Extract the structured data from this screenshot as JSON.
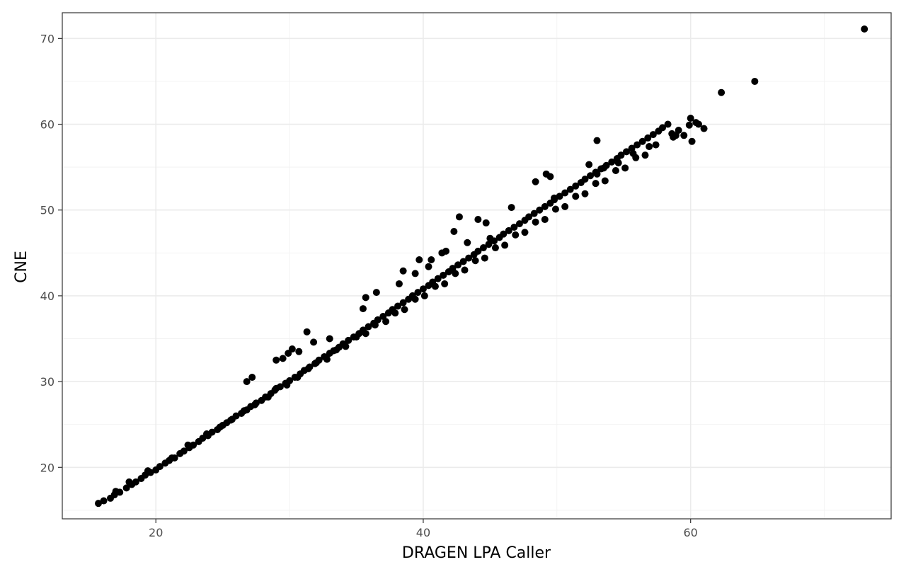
{
  "chart_data": {
    "type": "scatter",
    "title": "",
    "xlabel": "DRAGEN LPA Caller",
    "ylabel": "CNE",
    "xlim": [
      13,
      75
    ],
    "ylim": [
      14,
      73
    ],
    "x_ticks": [
      20,
      40,
      60
    ],
    "y_ticks": [
      20,
      30,
      40,
      50,
      60,
      70
    ],
    "x_minor_ticks": [
      30,
      50,
      70
    ],
    "y_minor_ticks": [
      15,
      25,
      35,
      45,
      55,
      65
    ],
    "grid": true,
    "legend": "none",
    "point_color": "#000000",
    "series": [
      {
        "points": [
          [
            15.7,
            15.8
          ],
          [
            16.1,
            16.1
          ],
          [
            16.6,
            16.4
          ],
          [
            16.9,
            16.8
          ],
          [
            17.3,
            17.1
          ],
          [
            17.8,
            17.6
          ],
          [
            18.2,
            18.0
          ],
          [
            18.5,
            18.3
          ],
          [
            18.9,
            18.7
          ],
          [
            19.2,
            19.1
          ],
          [
            19.6,
            19.4
          ],
          [
            20.0,
            19.7
          ],
          [
            20.3,
            20.1
          ],
          [
            20.7,
            20.5
          ],
          [
            21.0,
            20.8
          ],
          [
            21.4,
            21.1
          ],
          [
            21.8,
            21.6
          ],
          [
            22.1,
            21.9
          ],
          [
            22.5,
            22.3
          ],
          [
            22.8,
            22.6
          ],
          [
            23.2,
            23.0
          ],
          [
            23.5,
            23.4
          ],
          [
            23.9,
            23.7
          ],
          [
            24.2,
            24.1
          ],
          [
            24.6,
            24.4
          ],
          [
            25.0,
            24.9
          ],
          [
            25.3,
            25.2
          ],
          [
            25.7,
            25.6
          ],
          [
            26.0,
            26.0
          ],
          [
            26.4,
            26.3
          ],
          [
            26.8,
            26.7
          ],
          [
            27.1,
            27.1
          ],
          [
            27.5,
            27.5
          ],
          [
            27.9,
            27.8
          ],
          [
            28.2,
            28.2
          ],
          [
            28.6,
            28.6
          ],
          [
            28.9,
            29.0
          ],
          [
            29.3,
            29.4
          ],
          [
            29.7,
            29.8
          ],
          [
            30.0,
            30.1
          ],
          [
            30.4,
            30.5
          ],
          [
            30.8,
            30.9
          ],
          [
            31.1,
            31.3
          ],
          [
            31.5,
            31.7
          ],
          [
            31.9,
            32.1
          ],
          [
            32.2,
            32.5
          ],
          [
            32.6,
            32.9
          ],
          [
            33.0,
            33.3
          ],
          [
            33.3,
            33.6
          ],
          [
            33.7,
            34.0
          ],
          [
            34.0,
            34.4
          ],
          [
            34.4,
            34.8
          ],
          [
            34.8,
            35.2
          ],
          [
            35.2,
            35.6
          ],
          [
            35.5,
            36.0
          ],
          [
            35.9,
            36.4
          ],
          [
            36.3,
            36.8
          ],
          [
            36.6,
            37.2
          ],
          [
            37.0,
            37.6
          ],
          [
            37.4,
            38.0
          ],
          [
            37.7,
            38.4
          ],
          [
            38.1,
            38.8
          ],
          [
            38.5,
            39.2
          ],
          [
            38.9,
            39.6
          ],
          [
            39.2,
            40.0
          ],
          [
            39.6,
            40.4
          ],
          [
            40.0,
            40.8
          ],
          [
            40.4,
            41.2
          ],
          [
            40.7,
            41.6
          ],
          [
            41.1,
            42.0
          ],
          [
            41.5,
            42.4
          ],
          [
            41.9,
            42.8
          ],
          [
            42.2,
            43.2
          ],
          [
            42.6,
            43.6
          ],
          [
            43.0,
            44.0
          ],
          [
            43.4,
            44.4
          ],
          [
            43.8,
            44.8
          ],
          [
            44.1,
            45.2
          ],
          [
            44.5,
            45.6
          ],
          [
            44.9,
            46.0
          ],
          [
            45.3,
            46.4
          ],
          [
            45.7,
            46.8
          ],
          [
            46.0,
            47.2
          ],
          [
            46.4,
            47.6
          ],
          [
            46.8,
            48.0
          ],
          [
            47.2,
            48.4
          ],
          [
            47.6,
            48.8
          ],
          [
            47.9,
            49.2
          ],
          [
            48.3,
            49.6
          ],
          [
            48.7,
            50.0
          ],
          [
            49.1,
            50.4
          ],
          [
            49.5,
            50.8
          ],
          [
            49.8,
            51.2
          ],
          [
            50.2,
            51.6
          ],
          [
            50.6,
            52.0
          ],
          [
            51.0,
            52.4
          ],
          [
            51.4,
            52.8
          ],
          [
            51.8,
            53.2
          ],
          [
            52.1,
            53.6
          ],
          [
            52.5,
            54.0
          ],
          [
            52.9,
            54.4
          ],
          [
            53.3,
            54.8
          ],
          [
            53.7,
            55.2
          ],
          [
            54.1,
            55.6
          ],
          [
            54.5,
            56.0
          ],
          [
            54.8,
            56.4
          ],
          [
            55.2,
            56.8
          ],
          [
            55.6,
            57.2
          ],
          [
            56.0,
            57.6
          ],
          [
            56.4,
            58.0
          ],
          [
            56.8,
            58.4
          ],
          [
            57.2,
            58.8
          ],
          [
            57.6,
            59.2
          ],
          [
            57.9,
            59.6
          ],
          [
            58.3,
            60.0
          ],
          [
            58.7,
            58.5
          ],
          [
            59.1,
            59.3
          ],
          [
            59.5,
            58.7
          ],
          [
            59.9,
            59.9
          ],
          [
            60.4,
            60.2
          ],
          [
            17.0,
            17.2
          ],
          [
            18.0,
            18.3
          ],
          [
            19.4,
            19.6
          ],
          [
            21.2,
            21.1
          ],
          [
            22.4,
            22.6
          ],
          [
            23.8,
            23.9
          ],
          [
            24.8,
            24.7
          ],
          [
            25.6,
            25.5
          ],
          [
            26.6,
            26.6
          ],
          [
            27.4,
            27.3
          ],
          [
            28.4,
            28.2
          ],
          [
            29.0,
            29.2
          ],
          [
            29.8,
            29.6
          ],
          [
            30.6,
            30.5
          ],
          [
            31.4,
            31.5
          ],
          [
            32.0,
            32.2
          ],
          [
            32.8,
            32.6
          ],
          [
            33.5,
            33.7
          ],
          [
            34.2,
            34.1
          ],
          [
            35.0,
            35.2
          ],
          [
            35.7,
            35.6
          ],
          [
            36.4,
            36.6
          ],
          [
            37.2,
            37.0
          ],
          [
            37.9,
            38.0
          ],
          [
            38.6,
            38.4
          ],
          [
            39.4,
            39.6
          ],
          [
            40.1,
            40.0
          ],
          [
            40.9,
            41.1
          ],
          [
            41.6,
            41.4
          ],
          [
            42.4,
            42.6
          ],
          [
            43.1,
            43.0
          ],
          [
            43.9,
            44.1
          ],
          [
            44.6,
            44.4
          ],
          [
            45.4,
            45.6
          ],
          [
            46.1,
            45.9
          ],
          [
            46.9,
            47.1
          ],
          [
            47.6,
            47.4
          ],
          [
            48.4,
            48.6
          ],
          [
            49.1,
            48.9
          ],
          [
            49.9,
            50.1
          ],
          [
            50.6,
            50.4
          ],
          [
            51.4,
            51.6
          ],
          [
            52.1,
            51.9
          ],
          [
            52.9,
            53.1
          ],
          [
            53.6,
            53.4
          ],
          [
            54.4,
            54.6
          ],
          [
            55.1,
            54.9
          ],
          [
            55.9,
            56.1
          ],
          [
            56.6,
            56.4
          ],
          [
            57.4,
            57.6
          ],
          [
            26.8,
            30.0
          ],
          [
            27.2,
            30.5
          ],
          [
            29.0,
            32.5
          ],
          [
            29.5,
            32.7
          ],
          [
            29.9,
            33.3
          ],
          [
            30.2,
            33.8
          ],
          [
            30.7,
            33.5
          ],
          [
            31.3,
            35.8
          ],
          [
            31.8,
            34.6
          ],
          [
            33.0,
            35.0
          ],
          [
            35.5,
            38.5
          ],
          [
            35.7,
            39.8
          ],
          [
            36.5,
            40.4
          ],
          [
            38.2,
            41.4
          ],
          [
            38.5,
            42.9
          ],
          [
            39.4,
            42.6
          ],
          [
            39.7,
            44.2
          ],
          [
            40.4,
            43.4
          ],
          [
            40.6,
            44.2
          ],
          [
            41.4,
            45.0
          ],
          [
            41.7,
            45.2
          ],
          [
            42.3,
            47.5
          ],
          [
            42.7,
            49.2
          ],
          [
            43.3,
            46.2
          ],
          [
            44.1,
            48.9
          ],
          [
            44.7,
            48.5
          ],
          [
            45.0,
            46.7
          ],
          [
            46.6,
            50.3
          ],
          [
            48.4,
            53.3
          ],
          [
            49.2,
            54.2
          ],
          [
            49.5,
            53.9
          ],
          [
            49.8,
            51.4
          ],
          [
            52.4,
            55.3
          ],
          [
            53.0,
            54.2
          ],
          [
            53.5,
            54.9
          ],
          [
            54.6,
            55.5
          ],
          [
            55.7,
            56.6
          ],
          [
            56.9,
            57.4
          ],
          [
            58.6,
            58.9
          ],
          [
            58.9,
            58.7
          ],
          [
            53.0,
            58.1
          ],
          [
            60.0,
            60.7
          ],
          [
            60.1,
            58.0
          ],
          [
            60.6,
            60.0
          ],
          [
            61.0,
            59.5
          ],
          [
            62.3,
            63.7
          ],
          [
            64.8,
            65.0
          ],
          [
            73.0,
            71.1
          ]
        ]
      }
    ]
  }
}
